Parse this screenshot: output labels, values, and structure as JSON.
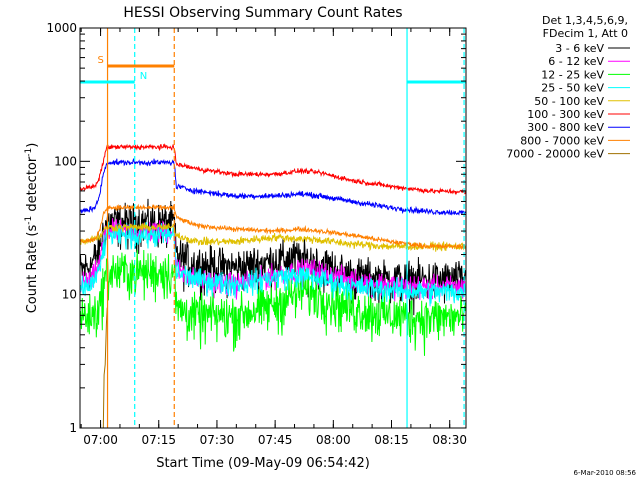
{
  "chart_data": {
    "type": "line",
    "title": "HESSI Observing Summary Count Rates",
    "xlabel": "Start Time (09-May-09 06:54:42)",
    "ylabel_main": "Count Rate (s",
    "ylabel_sup1": "-1",
    "ylabel_mid": " detector",
    "ylabel_sup2": "-1",
    "ylabel_end": ")",
    "yscale": "log",
    "ylim": [
      1,
      1000
    ],
    "xlim_minutes": [
      0,
      99.5
    ],
    "x_ticks": [
      {
        "label": "07:00",
        "minute": 5.3
      },
      {
        "label": "07:15",
        "minute": 20.3
      },
      {
        "label": "07:30",
        "minute": 35.3
      },
      {
        "label": "07:45",
        "minute": 50.3
      },
      {
        "label": "08:00",
        "minute": 65.3
      },
      {
        "label": "08:15",
        "minute": 80.3
      },
      {
        "label": "08:30",
        "minute": 95.3
      }
    ],
    "y_ticks": [
      {
        "label": "1",
        "value": 1
      },
      {
        "label": "10",
        "value": 10
      },
      {
        "label": "100",
        "value": 100
      },
      {
        "label": "1000",
        "value": 1000
      }
    ],
    "legend": {
      "header": [
        "Det 1,3,4,5,6,9,",
        "FDecim 1, Att 0"
      ],
      "placement": "right"
    },
    "series": [
      {
        "name": "3 - 6 keV",
        "color": "#000000",
        "noise": 0.55,
        "points": [
          [
            0,
            15
          ],
          [
            3,
            17
          ],
          [
            5,
            22
          ],
          [
            6,
            30
          ],
          [
            7,
            35
          ],
          [
            24.3,
            35
          ],
          [
            24.8,
            20
          ],
          [
            30,
            17
          ],
          [
            40,
            16
          ],
          [
            50,
            18
          ],
          [
            55,
            19
          ],
          [
            60,
            18
          ],
          [
            65,
            16
          ],
          [
            70,
            14
          ],
          [
            80,
            13
          ],
          [
            90,
            13
          ],
          [
            99.5,
            13
          ]
        ]
      },
      {
        "name": "6 - 12 keV",
        "color": "#ff00ff",
        "noise": 0.3,
        "points": [
          [
            0,
            12
          ],
          [
            3,
            13
          ],
          [
            5,
            17
          ],
          [
            6,
            25
          ],
          [
            7,
            30
          ],
          [
            24.3,
            30
          ],
          [
            24.8,
            16
          ],
          [
            30,
            13
          ],
          [
            40,
            12
          ],
          [
            50,
            14
          ],
          [
            55,
            15
          ],
          [
            60,
            15.5
          ],
          [
            65,
            14
          ],
          [
            70,
            13
          ],
          [
            80,
            12
          ],
          [
            90,
            11.5
          ],
          [
            99.5,
            11.5
          ]
        ]
      },
      {
        "name": "12 - 25 keV",
        "color": "#00ff00",
        "noise": 0.6,
        "points": [
          [
            0,
            7
          ],
          [
            3,
            7
          ],
          [
            5,
            8
          ],
          [
            6,
            12
          ],
          [
            7,
            15
          ],
          [
            24.3,
            15
          ],
          [
            24.8,
            8
          ],
          [
            30,
            7
          ],
          [
            40,
            7
          ],
          [
            50,
            8.5
          ],
          [
            55,
            10
          ],
          [
            58,
            11
          ],
          [
            62,
            10
          ],
          [
            65,
            9
          ],
          [
            70,
            8
          ],
          [
            80,
            7
          ],
          [
            90,
            6.8
          ],
          [
            99.5,
            6.8
          ]
        ]
      },
      {
        "name": "25 - 50 keV",
        "color": "#00ffff",
        "noise": 0.3,
        "points": [
          [
            0,
            11
          ],
          [
            3,
            12
          ],
          [
            5,
            15
          ],
          [
            6,
            22
          ],
          [
            7,
            28
          ],
          [
            24.3,
            28
          ],
          [
            24.8,
            15
          ],
          [
            30,
            13
          ],
          [
            40,
            12
          ],
          [
            50,
            13.5
          ],
          [
            55,
            14
          ],
          [
            60,
            13.5
          ],
          [
            65,
            12.5
          ],
          [
            70,
            11.5
          ],
          [
            80,
            11
          ],
          [
            90,
            10.5
          ],
          [
            99.5,
            10.5
          ]
        ]
      },
      {
        "name": "50 - 100 keV",
        "color": "#e0c000",
        "noise": 0.1,
        "points": [
          [
            0,
            25
          ],
          [
            5,
            27
          ],
          [
            6,
            30
          ],
          [
            7,
            32
          ],
          [
            24.3,
            32
          ],
          [
            24.8,
            28
          ],
          [
            30,
            25
          ],
          [
            40,
            25
          ],
          [
            50,
            27
          ],
          [
            60,
            26
          ],
          [
            70,
            24
          ],
          [
            80,
            23
          ],
          [
            99.5,
            23
          ]
        ]
      },
      {
        "name": "100 - 300 keV",
        "color": "#ff0000",
        "noise": 0.06,
        "points": [
          [
            0,
            62
          ],
          [
            4,
            65
          ],
          [
            5,
            75
          ],
          [
            6,
            100
          ],
          [
            6.8,
            125
          ],
          [
            7,
            128
          ],
          [
            24.3,
            128
          ],
          [
            24.8,
            95
          ],
          [
            30,
            88
          ],
          [
            40,
            80
          ],
          [
            50,
            80
          ],
          [
            57,
            85
          ],
          [
            62,
            82
          ],
          [
            70,
            72
          ],
          [
            80,
            65
          ],
          [
            90,
            60
          ],
          [
            99.5,
            59
          ]
        ]
      },
      {
        "name": "300 - 800 keV",
        "color": "#0000ff",
        "noise": 0.07,
        "points": [
          [
            0,
            42
          ],
          [
            4,
            45
          ],
          [
            5,
            55
          ],
          [
            6,
            80
          ],
          [
            6.8,
            95
          ],
          [
            7,
            98
          ],
          [
            24.3,
            98
          ],
          [
            24.8,
            65
          ],
          [
            30,
            60
          ],
          [
            40,
            55
          ],
          [
            50,
            55
          ],
          [
            57,
            57
          ],
          [
            62,
            55
          ],
          [
            70,
            50
          ],
          [
            80,
            45
          ],
          [
            90,
            42
          ],
          [
            99.5,
            41
          ]
        ]
      },
      {
        "name": "800 - 7000 keV",
        "color": "#ff8000",
        "noise": 0.06,
        "points": [
          [
            0,
            25
          ],
          [
            4,
            26
          ],
          [
            5,
            30
          ],
          [
            6,
            40
          ],
          [
            7,
            45
          ],
          [
            24.3,
            45
          ],
          [
            24.8,
            38
          ],
          [
            30,
            33
          ],
          [
            40,
            31
          ],
          [
            50,
            30
          ],
          [
            57,
            31
          ],
          [
            62,
            30
          ],
          [
            70,
            28
          ],
          [
            80,
            25
          ],
          [
            90,
            23
          ],
          [
            99.5,
            23
          ]
        ]
      },
      {
        "name": "7000 - 20000 keV",
        "color": "#a07000",
        "noise": 0,
        "points": [
          [
            6,
            1
          ],
          [
            6.2,
            2.5
          ],
          [
            6.5,
            3
          ],
          [
            6.8,
            6
          ],
          [
            7,
            8
          ]
        ]
      }
    ],
    "annotations": [
      {
        "label": "S",
        "color": "#ff8000",
        "level": 0.905,
        "x_start": 7.1,
        "x_end": 24.3
      },
      {
        "label": "N",
        "color": "#00ffff",
        "level": 0.865,
        "x_start": 0,
        "x_end": 14.1
      },
      {
        "label": "",
        "color": "#00ffff",
        "level": 0.865,
        "x_start": 84.3,
        "x_end": 99.5
      }
    ],
    "vlines": [
      {
        "minute": 7.1,
        "color": "#ff8000",
        "dashed": false
      },
      {
        "minute": 14.1,
        "color": "#00ffff",
        "dashed": true
      },
      {
        "minute": 24.3,
        "color": "#ff8000",
        "dashed": true
      },
      {
        "minute": 84.3,
        "color": "#00ffff",
        "dashed": false
      },
      {
        "minute": 99.0,
        "color": "#00ffff",
        "dashed": true
      }
    ],
    "footer_date": "6-Mar-2010 08:56"
  }
}
